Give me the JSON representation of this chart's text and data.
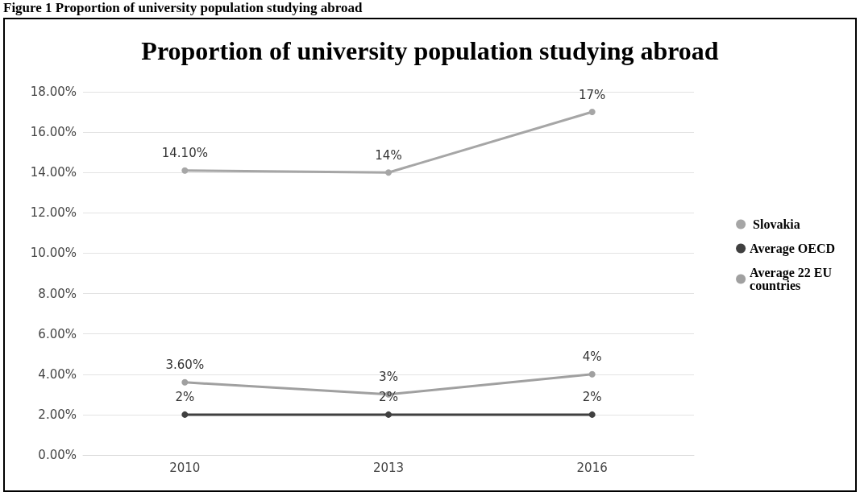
{
  "chart_data": {
    "type": "line",
    "title": "Proportion of university population studying abroad",
    "annotations": [
      "Figure 1 Proportion of university population studying abroad"
    ],
    "categories": [
      "2010",
      "2013",
      "2016"
    ],
    "series": [
      {
        "name": " Slovakia",
        "color": "#a6a6a6",
        "values": [
          14.1,
          14,
          17
        ],
        "value_labels": [
          "14.10%",
          "14%",
          "17%"
        ]
      },
      {
        "name": "Average OECD",
        "color": "#404040",
        "values": [
          2,
          2,
          2
        ],
        "value_labels": [
          "2%",
          "2%",
          "2%"
        ]
      },
      {
        "name": "Average 22 EU\ncountries",
        "color": "#a0a0a0",
        "values": [
          3.6,
          3,
          4
        ],
        "value_labels": [
          "3.60%",
          "3%",
          "4%"
        ]
      }
    ],
    "ylim": [
      0,
      18
    ],
    "yticks": [
      {
        "value": 0,
        "label": "0.00%"
      },
      {
        "value": 2,
        "label": "2.00%"
      },
      {
        "value": 4,
        "label": "4.00%"
      },
      {
        "value": 6,
        "label": "6.00%"
      },
      {
        "value": 8,
        "label": "8.00%"
      },
      {
        "value": 10,
        "label": "10.00%"
      },
      {
        "value": 12,
        "label": "12.00%"
      },
      {
        "value": 14,
        "label": "14.00%"
      },
      {
        "value": 16,
        "label": "16.00%"
      },
      {
        "value": 18,
        "label": "18.00%"
      }
    ],
    "grid": "y",
    "legend": "right",
    "marker": "circle",
    "line_style": "solid"
  }
}
